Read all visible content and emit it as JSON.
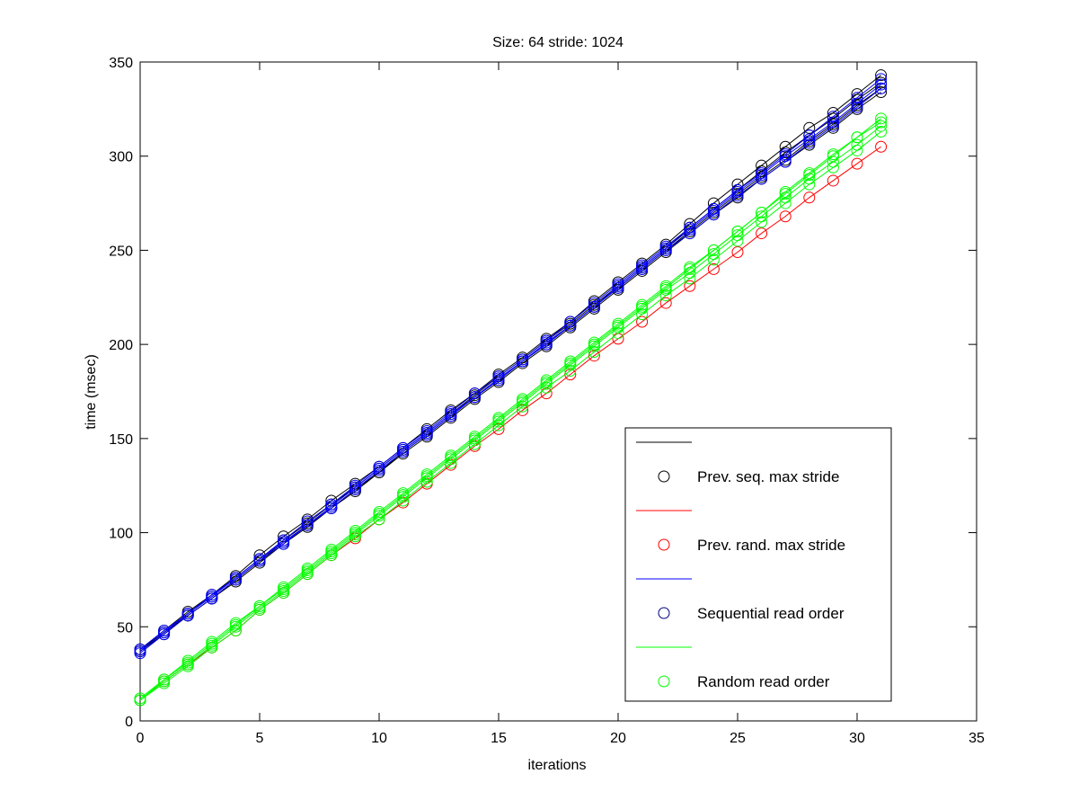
{
  "chart_data": {
    "type": "line",
    "title": "Size: 64 stride: 1024",
    "xlabel": "iterations",
    "ylabel": "time (msec)",
    "xlim": [
      0,
      35
    ],
    "ylim": [
      0,
      350
    ],
    "xticks": [
      0,
      5,
      10,
      15,
      20,
      25,
      30,
      35
    ],
    "yticks": [
      0,
      50,
      100,
      150,
      200,
      250,
      300,
      350
    ],
    "grid": false,
    "markers": "open circle",
    "legend_position": "bottom-right",
    "legend": [
      {
        "label": "",
        "color": "#000000",
        "kind": "line"
      },
      {
        "label": "Prev. seq. max stride",
        "color": "#000000",
        "kind": "marker"
      },
      {
        "label": "",
        "color": "#ff0000",
        "kind": "line"
      },
      {
        "label": "Prev. rand. max stride",
        "color": "#ff0000",
        "kind": "marker"
      },
      {
        "label": "",
        "color": "#0000ff",
        "kind": "line"
      },
      {
        "label": "Sequential read order",
        "color": "#00007f",
        "kind": "marker"
      },
      {
        "label": "",
        "color": "#00ff00",
        "kind": "line"
      },
      {
        "label": "Random read order",
        "color": "#00ff00",
        "kind": "marker"
      }
    ],
    "x": [
      0,
      1,
      2,
      3,
      4,
      5,
      6,
      7,
      8,
      9,
      10,
      11,
      12,
      13,
      14,
      15,
      16,
      17,
      18,
      19,
      20,
      21,
      22,
      23,
      24,
      25,
      26,
      27,
      28,
      29,
      30,
      31
    ],
    "series": [
      {
        "color": "#000000",
        "values": [
          38,
          48,
          58,
          67,
          77,
          88,
          98,
          107,
          117,
          126,
          135,
          145,
          155,
          165,
          174,
          184,
          193,
          203,
          212,
          223,
          233,
          243,
          253,
          264,
          275,
          285,
          295,
          305,
          315,
          323,
          333,
          343
        ]
      },
      {
        "color": "#000000",
        "values": [
          37,
          47,
          56,
          65,
          75,
          85,
          95,
          104,
          113,
          123,
          132,
          143,
          152,
          162,
          172,
          181,
          191,
          200,
          210,
          220,
          230,
          240,
          250,
          260,
          270,
          280,
          289,
          298,
          308,
          317,
          327,
          336
        ]
      },
      {
        "color": "#000000",
        "values": [
          38,
          47,
          57,
          66,
          76,
          86,
          96,
          105,
          115,
          124,
          134,
          144,
          153,
          163,
          173,
          183,
          192,
          202,
          211,
          221,
          231,
          241,
          251,
          262,
          272,
          282,
          292,
          302,
          311,
          320,
          330,
          339
        ]
      },
      {
        "color": "#000000",
        "values": [
          37,
          46,
          56,
          65,
          74,
          84,
          94,
          103,
          113,
          122,
          132,
          142,
          151,
          161,
          171,
          180,
          190,
          199,
          209,
          219,
          229,
          239,
          249,
          259,
          269,
          278,
          288,
          297,
          306,
          315,
          325,
          334
        ]
      },
      {
        "color": "#0000ff",
        "values": [
          37,
          47,
          57,
          66,
          76,
          86,
          95,
          104,
          114,
          124,
          134,
          144,
          153,
          163,
          172,
          182,
          191,
          201,
          210,
          220,
          231,
          241,
          251,
          261,
          271,
          281,
          290,
          300,
          309,
          318,
          328,
          338
        ]
      },
      {
        "color": "#0000ff",
        "values": [
          38,
          48,
          57,
          67,
          76,
          86,
          96,
          106,
          115,
          125,
          135,
          145,
          154,
          164,
          174,
          183,
          192,
          202,
          212,
          222,
          232,
          242,
          252,
          262,
          272,
          282,
          291,
          301,
          311,
          321,
          331,
          341
        ]
      },
      {
        "color": "#0000ff",
        "values": [
          36,
          46,
          56,
          65,
          75,
          85,
          94,
          104,
          113,
          123,
          133,
          143,
          152,
          162,
          172,
          181,
          191,
          200,
          210,
          220,
          230,
          240,
          250,
          259,
          269,
          279,
          288,
          297,
          307,
          316,
          326,
          336
        ]
      },
      {
        "color": "#ff0000",
        "values": [
          11,
          21,
          30,
          39,
          48,
          59,
          68,
          78,
          88,
          97,
          107,
          116,
          126,
          136,
          146,
          155,
          165,
          174,
          184,
          194,
          203,
          212,
          222,
          231,
          240,
          249,
          259,
          268,
          278,
          287,
          296,
          305
        ]
      },
      {
        "color": "#00ff00",
        "values": [
          11,
          22,
          31,
          41,
          51,
          61,
          70,
          80,
          90,
          100,
          110,
          120,
          130,
          140,
          150,
          160,
          170,
          180,
          190,
          200,
          210,
          220,
          230,
          240,
          250,
          260,
          270,
          280,
          290,
          300,
          310,
          320
        ]
      },
      {
        "color": "#00ff00",
        "values": [
          11,
          21,
          30,
          40,
          50,
          60,
          69,
          79,
          89,
          99,
          109,
          119,
          129,
          139,
          149,
          159,
          169,
          179,
          189,
          199,
          209,
          219,
          229,
          238,
          248,
          258,
          268,
          278,
          288,
          297,
          306,
          316
        ]
      },
      {
        "color": "#00ff00",
        "values": [
          11,
          20,
          29,
          39,
          48,
          59,
          68,
          78,
          88,
          98,
          107,
          117,
          127,
          137,
          147,
          157,
          167,
          177,
          186,
          196,
          206,
          216,
          226,
          235,
          245,
          255,
          265,
          275,
          285,
          294,
          303,
          313
        ]
      },
      {
        "color": "#00ff00",
        "values": [
          12,
          22,
          32,
          42,
          52,
          61,
          71,
          81,
          91,
          101,
          111,
          121,
          131,
          141,
          151,
          161,
          171,
          181,
          191,
          201,
          211,
          221,
          231,
          241,
          250,
          260,
          270,
          281,
          291,
          301,
          310,
          318
        ]
      }
    ]
  }
}
